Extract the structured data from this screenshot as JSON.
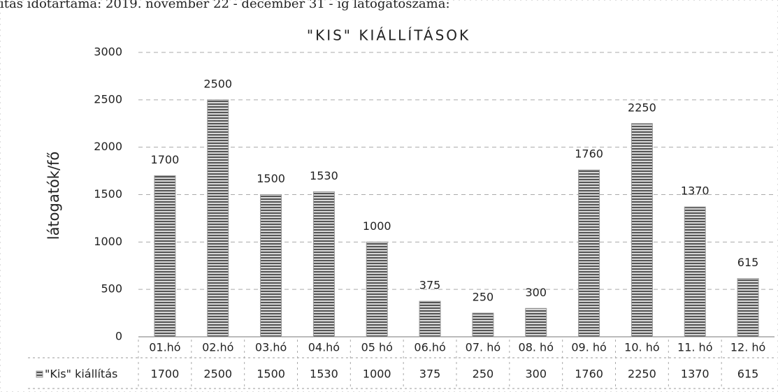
{
  "header_text": "ítás időtartama: 2019. november 22 - december 31 - ig látogatószáma:",
  "chart_data": {
    "type": "bar",
    "title": "\"KIS\" KIÁLLÍTÁSOK",
    "y_label": "látogatók/fő",
    "categories": [
      "01.hó",
      "02.hó",
      "03.hó",
      "04.hó",
      "05 hó",
      "06.hó",
      "07. hó",
      "08. hó",
      "09. hó",
      "10. hó",
      "11. hó",
      "12. hó"
    ],
    "series": [
      {
        "name": "\"Kis\" kiállítás",
        "color": "#9a9a9a",
        "values": [
          1700,
          2500,
          1500,
          1530,
          1000,
          375,
          250,
          300,
          1760,
          2250,
          1370,
          615
        ]
      }
    ],
    "ylim": [
      0,
      3000
    ],
    "yticks": [
      0,
      500,
      1000,
      1500,
      2000,
      2500,
      3000
    ],
    "grid": true
  }
}
